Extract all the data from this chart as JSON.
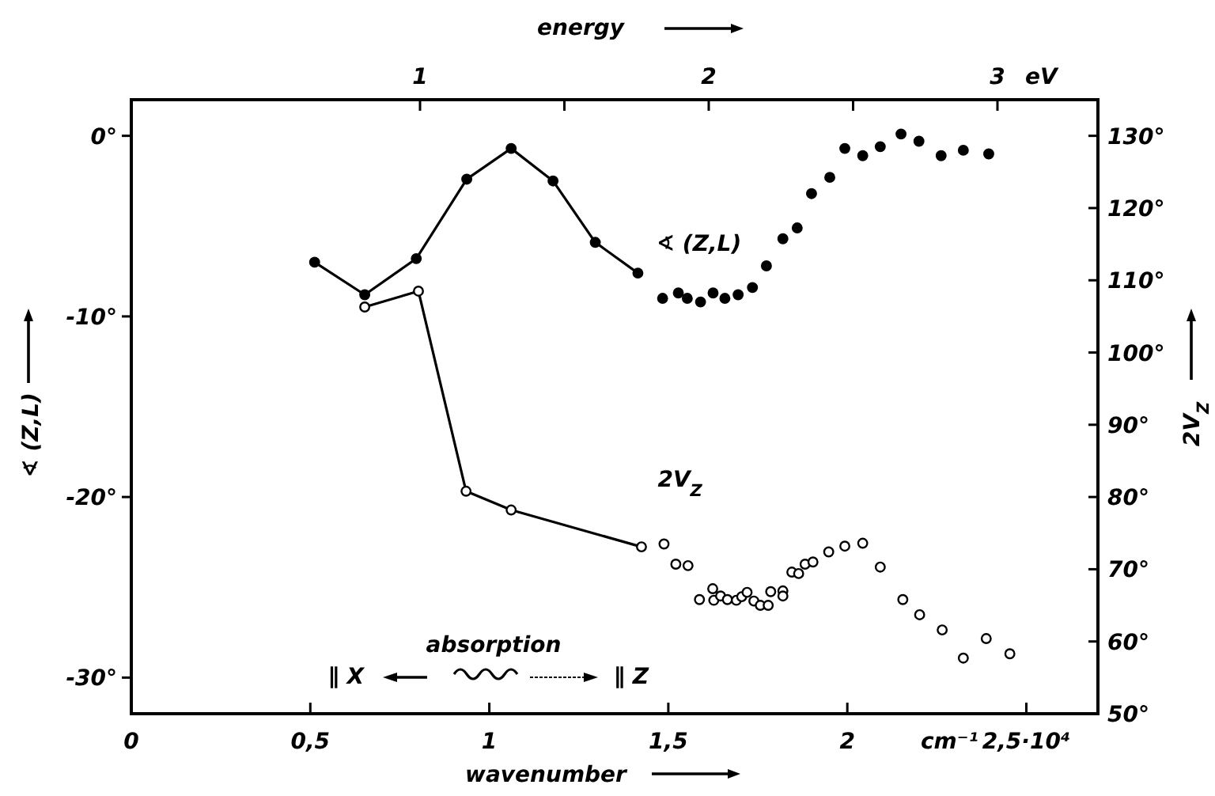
{
  "chart_data": {
    "type": "scatter",
    "xlabel": "wavenumber",
    "ylabel": "∢ (Z,L)",
    "y2label": "2V$_{Z}$",
    "x2label": "energy",
    "xlim": [
      0,
      2.7
    ],
    "xticks": [
      0,
      {
        "value": 0.5,
        "label": "0,5"
      },
      1,
      {
        "value": 1.5,
        "label": "1,5"
      },
      2,
      {
        "value": 2.5,
        "label": "2,5·10⁴"
      }
    ],
    "x2lim": [
      0,
      3.348
    ],
    "x2ticks": [
      1,
      {
        "value": 1.5,
        "label": null
      },
      2,
      {
        "value": 2.5,
        "label": null
      },
      3
    ],
    "ylim": [
      -32,
      2
    ],
    "yticks": [
      {
        "value": 0,
        "label": "0°"
      },
      {
        "value": -10,
        "label": "-10°"
      },
      {
        "value": -20,
        "label": "-20°"
      },
      {
        "value": -30,
        "label": "-30°"
      }
    ],
    "y2lim": [
      50,
      135
    ],
    "y2ticks": [
      {
        "value": 50,
        "label": "50°"
      },
      {
        "value": 60,
        "label": "60°"
      },
      {
        "value": 70,
        "label": "70°"
      },
      {
        "value": 80,
        "label": "80°"
      },
      {
        "value": 90,
        "label": "90°"
      },
      {
        "value": 100,
        "label": "100°"
      },
      {
        "value": 110,
        "label": "110°"
      },
      {
        "value": 120,
        "label": "120°"
      },
      {
        "value": 130,
        "label": "130°"
      }
    ],
    "marker": "circle",
    "grid": false,
    "series": [
      {
        "type": "line",
        "color": "#000000",
        "x": [
          0.512,
          0.652,
          0.796,
          0.937,
          1.061,
          1.178,
          1.296,
          1.415
        ],
        "values": [
          -7.0,
          -8.8,
          -6.8,
          -2.4,
          -0.7,
          -2.5,
          -5.9,
          -7.6
        ]
      },
      {
        "name": "∢ (Z,L)",
        "color": "#000000",
        "x": [
          1.484,
          1.528,
          1.553,
          1.59,
          1.625,
          1.658,
          1.695,
          1.735,
          1.774,
          1.82,
          1.86,
          1.9,
          1.951,
          1.993,
          2.043,
          2.092,
          2.15,
          2.2,
          2.262,
          2.324,
          2.395
        ],
        "values": [
          -9.0,
          -8.7,
          -9.0,
          -9.2,
          -8.7,
          -9.0,
          -8.8,
          -8.4,
          -7.2,
          -5.7,
          -5.1,
          -3.2,
          -2.3,
          -0.7,
          -1.1,
          -0.6,
          0.1,
          -0.3,
          -1.1,
          -0.8,
          -1.0
        ]
      },
      {
        "type": "line",
        "axis": "y2",
        "color": "#000000",
        "x": [
          0.652,
          0.802,
          0.935,
          1.061,
          1.425
        ],
        "values": [
          106.3,
          108.5,
          80.8,
          78.2,
          73.1
        ]
      },
      {
        "axis": "y2",
        "name": "2V$_{Z}$",
        "color": "#000000",
        "x": [
          1.488,
          1.521,
          1.555,
          1.587,
          1.624,
          1.627,
          1.646,
          1.665,
          1.69,
          1.705,
          1.72,
          1.739,
          1.757,
          1.779,
          1.786,
          1.82,
          1.82,
          1.845,
          1.864,
          1.882,
          1.904,
          1.948,
          1.993,
          2.043,
          2.092,
          2.155,
          2.202,
          2.265,
          2.324,
          2.388,
          2.454
        ],
        "values": [
          73.5,
          70.7,
          70.5,
          65.8,
          67.3,
          65.7,
          66.3,
          65.8,
          65.7,
          66.2,
          66.8,
          65.6,
          65.0,
          65.0,
          66.9,
          67.0,
          66.3,
          69.6,
          69.4,
          70.7,
          71.0,
          72.4,
          73.2,
          73.6,
          70.3,
          65.8,
          63.7,
          61.6,
          57.7,
          60.4,
          58.3
        ]
      }
    ],
    "annotations": [
      "absorption",
      "∥ X",
      "∥ Z",
      "cm⁻¹",
      "eV"
    ]
  }
}
